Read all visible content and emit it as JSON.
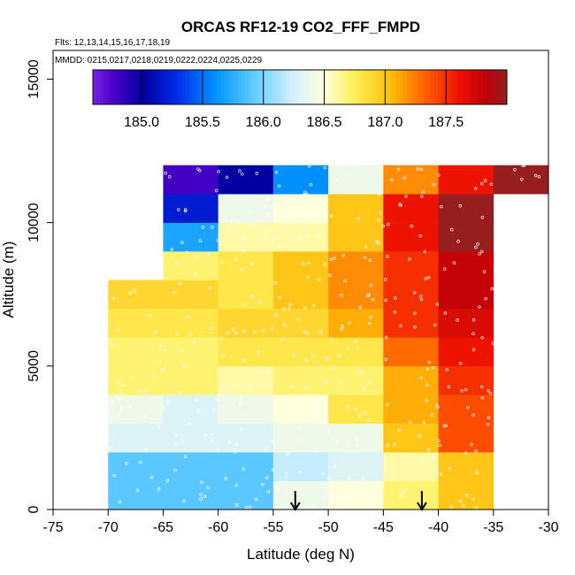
{
  "chart_data": {
    "type": "heatmap",
    "title": "ORCAS RF12-19 CO2_FFF_FMPD",
    "subtitle_flights": "Flts: 12,13,14,15,16,17,18,19",
    "subtitle_dates": "MMDD: 0215,0217,0218,0219,0222,0224,0225,0229",
    "xlabel": "Latitude (deg N)",
    "ylabel": "Altitude (m)",
    "xlim": [
      -75,
      -30
    ],
    "ylim": [
      0,
      16000
    ],
    "x_ticks": [
      -75,
      -70,
      -65,
      -60,
      -55,
      -50,
      -45,
      -40,
      -35,
      -30
    ],
    "x_tick_labels": [
      "-75",
      "-70",
      "-65",
      "-60",
      "-55",
      "-50",
      "-45",
      "-40",
      "-35",
      "-30"
    ],
    "y_ticks": [
      0,
      5000,
      10000,
      15000
    ],
    "y_tick_labels": [
      "0",
      "5000",
      "10000",
      "15000"
    ],
    "colorbar": {
      "range": [
        184.6,
        188.0
      ],
      "ticks": [
        185.0,
        185.5,
        186.0,
        186.5,
        187.0,
        187.5
      ],
      "tick_labels": [
        "185.0",
        "185.5",
        "186.0",
        "186.5",
        "187.0",
        "187.5"
      ]
    },
    "lat_edges": [
      -70,
      -65,
      -60,
      -55,
      -50,
      -45,
      -40,
      -35,
      -30
    ],
    "alt_edges": [
      0,
      1000,
      2000,
      3000,
      4000,
      5000,
      6000,
      7000,
      8000,
      9000,
      10000,
      11000,
      12000
    ],
    "values": [
      [
        185.9,
        185.9,
        185.9,
        186.4,
        186.5,
        186.7,
        187.0,
        null
      ],
      [
        185.9,
        185.9,
        185.9,
        186.2,
        186.3,
        186.6,
        187.0,
        null
      ],
      [
        186.3,
        186.3,
        186.3,
        186.4,
        186.4,
        187.0,
        187.4,
        null
      ],
      [
        186.4,
        186.3,
        186.4,
        186.5,
        186.8,
        187.1,
        187.4,
        null
      ],
      [
        186.7,
        186.7,
        186.6,
        186.7,
        186.7,
        187.1,
        187.5,
        null
      ],
      [
        186.7,
        186.7,
        186.8,
        186.8,
        186.8,
        187.3,
        187.6,
        null
      ],
      [
        186.8,
        186.8,
        186.9,
        186.9,
        187.1,
        187.5,
        187.7,
        null
      ],
      [
        186.9,
        186.9,
        186.8,
        187.0,
        187.2,
        187.5,
        187.8,
        null
      ],
      [
        null,
        186.7,
        186.8,
        187.0,
        187.2,
        187.5,
        187.8,
        null
      ],
      [
        null,
        185.7,
        186.6,
        186.6,
        187.0,
        187.6,
        188.0,
        null
      ],
      [
        null,
        185.2,
        186.4,
        186.5,
        187.0,
        187.6,
        188.0,
        null
      ],
      [
        null,
        184.8,
        185.0,
        185.6,
        186.4,
        187.2,
        187.6,
        188.0
      ]
    ],
    "arrows_lat": [
      -53,
      -41.5
    ]
  }
}
